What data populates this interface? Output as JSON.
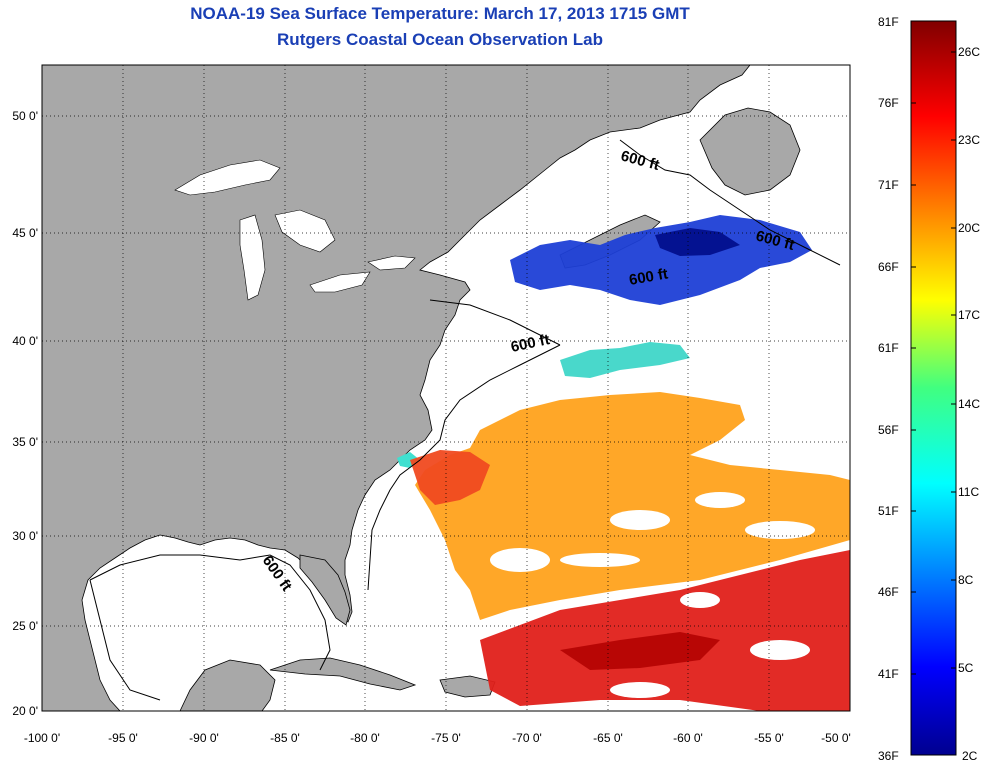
{
  "titles": {
    "line1": "NOAA-19 Sea Surface Temperature:  March 17, 2013 1715 GMT",
    "line2": "Rutgers Coastal Ocean Observation Lab"
  },
  "map": {
    "lon_ticks": [
      "-100 0'",
      "-95 0'",
      "-90 0'",
      "-85 0'",
      "-80 0'",
      "-75 0'",
      "-70 0'",
      "-65 0'",
      "-60 0'",
      "-55 0'",
      "-50 0'"
    ],
    "lat_ticks": [
      "50 0'",
      "45 0'",
      "40 0'",
      "35 0'",
      "30 0'",
      "25 0'",
      "20 0'"
    ],
    "contour_labels": [
      "600 ft",
      "600 ft",
      "600 ft",
      "600 ft",
      "600 ft"
    ],
    "land_color": "#a8a8a8",
    "ocean_color": "#ffffff"
  },
  "colorbar": {
    "fahrenheit_labels": [
      "81F",
      "76F",
      "71F",
      "66F",
      "61F",
      "56F",
      "51F",
      "46F",
      "41F",
      "36F"
    ],
    "celsius_labels": [
      "26C",
      "23C",
      "20C",
      "17C",
      "14C",
      "11C",
      "8C",
      "5C",
      "2C"
    ],
    "colormap": "jet",
    "range_F": [
      36,
      81
    ],
    "range_C": [
      2,
      27
    ]
  }
}
